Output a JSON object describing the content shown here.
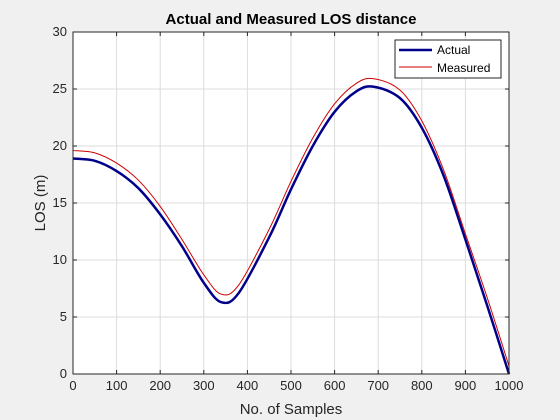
{
  "chart_data": {
    "type": "line",
    "title": "Actual and Measured LOS distance",
    "xlabel": "No. of Samples",
    "ylabel": "LOS (m)",
    "xlim": [
      0,
      1000
    ],
    "ylim": [
      0,
      30
    ],
    "x_ticks": [
      0,
      100,
      200,
      300,
      400,
      500,
      600,
      700,
      800,
      900,
      1000
    ],
    "y_ticks": [
      0,
      5,
      10,
      15,
      20,
      25,
      30
    ],
    "grid": true,
    "legend_position": "top-right",
    "series": [
      {
        "name": "Actual",
        "color": "#00008b",
        "x": [
          0,
          50,
          100,
          150,
          200,
          250,
          300,
          340,
          380,
          450,
          500,
          550,
          600,
          650,
          690,
          750,
          800,
          850,
          900,
          950,
          1000
        ],
        "y": [
          18.9,
          18.7,
          17.8,
          16.3,
          14.0,
          11.2,
          8.0,
          6.3,
          7.1,
          12.0,
          16.2,
          20.0,
          23.0,
          24.8,
          25.2,
          24.2,
          21.6,
          17.4,
          11.8,
          6.0,
          0.0
        ]
      },
      {
        "name": "Measured",
        "color": "#cc0000",
        "x": [
          0,
          50,
          100,
          150,
          200,
          250,
          300,
          340,
          380,
          450,
          500,
          550,
          600,
          650,
          690,
          750,
          800,
          850,
          900,
          950,
          1000
        ],
        "y": [
          19.6,
          19.4,
          18.5,
          17.0,
          14.7,
          11.8,
          8.7,
          7.0,
          7.8,
          12.7,
          16.9,
          20.7,
          23.7,
          25.5,
          25.9,
          24.9,
          22.2,
          17.9,
          12.3,
          6.7,
          0.7
        ]
      }
    ]
  }
}
